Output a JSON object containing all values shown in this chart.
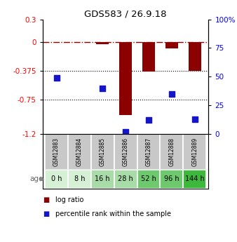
{
  "title": "GDS583 / 26.9.18",
  "samples": [
    "GSM12883",
    "GSM12884",
    "GSM12885",
    "GSM12886",
    "GSM12887",
    "GSM12888",
    "GSM12889"
  ],
  "ages": [
    "0 h",
    "8 h",
    "16 h",
    "28 h",
    "52 h",
    "96 h",
    "144 h"
  ],
  "log_ratio": [
    0.0,
    0.0,
    -0.025,
    -0.95,
    -0.38,
    -0.08,
    -0.375
  ],
  "percentile_rank": [
    49,
    null,
    40,
    2,
    12,
    35,
    13
  ],
  "ylim_left": [
    -1.2,
    0.3
  ],
  "ylim_right": [
    0,
    100
  ],
  "yticks_left": [
    -1.2,
    -0.75,
    -0.375,
    0,
    0.3
  ],
  "ytick_labels_left": [
    "-1.2",
    "-0.75",
    "-0.375",
    "0",
    "0.3"
  ],
  "yticks_right": [
    0,
    25,
    50,
    75,
    100
  ],
  "ytick_labels_right": [
    "0",
    "25",
    "50",
    "75",
    "100%"
  ],
  "hlines": [
    -0.375,
    -0.75
  ],
  "bar_color": "#8B0000",
  "scatter_color": "#1414C8",
  "bar_width": 0.55,
  "age_colors": [
    "#d6f0d6",
    "#d6f0d6",
    "#a8dba8",
    "#a8dba8",
    "#6ec86e",
    "#6ec86e",
    "#3db83d"
  ],
  "sample_bg_color": "#c8c8c8",
  "sample_edge_color": "#999999",
  "legend_bar_color": "#8B0000",
  "legend_scatter_color": "#1414C8"
}
